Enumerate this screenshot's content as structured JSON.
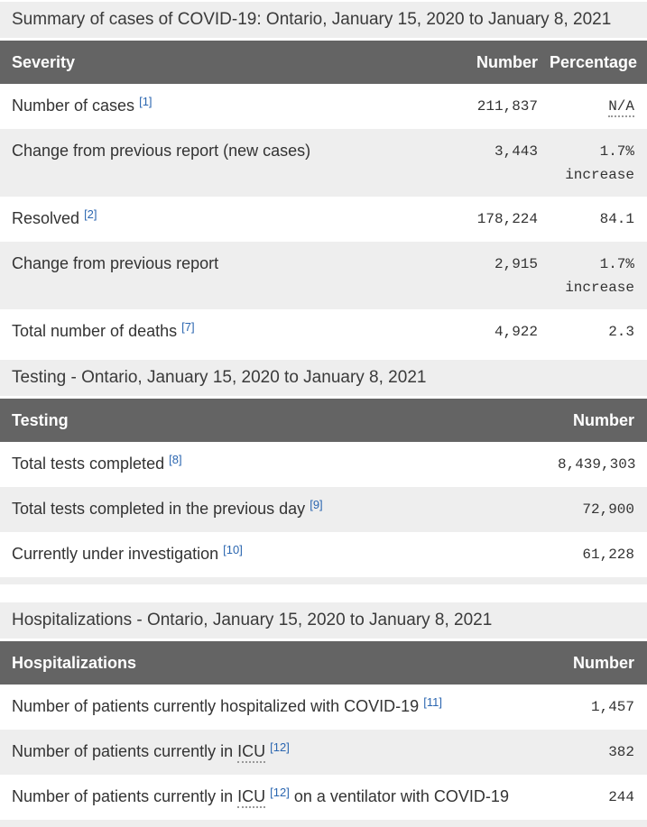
{
  "colors": {
    "caption_bg": "#eeeeee",
    "header_bg": "#646464",
    "header_text": "#ffffff",
    "zebra_bg": "#eeeeee",
    "body_text": "#333333",
    "footnote_link": "#2b66b0"
  },
  "summary": {
    "caption": "Summary of cases of COVID-19: Ontario, January 15, 2020 to January 8, 2021",
    "columns": {
      "severity": "Severity",
      "number": "Number",
      "percentage": "Percentage"
    },
    "rows": {
      "0": {
        "label": "Number of cases",
        "sup": "[1]",
        "number": "211,837",
        "percentage": "N/A"
      },
      "1": {
        "label": "Change from previous report (new cases)",
        "number": "3,443",
        "percentage": "1.7% increase"
      },
      "2": {
        "label": "Resolved",
        "sup": "[2]",
        "number": "178,224",
        "percentage": "84.1"
      },
      "3": {
        "label": "Change from previous report",
        "number": "2,915",
        "percentage": "1.7% increase"
      },
      "4": {
        "label": "Total number of deaths",
        "sup": "[7]",
        "number": "4,922",
        "percentage": "2.3"
      }
    }
  },
  "testing": {
    "caption": "Testing - Ontario, January 15, 2020 to January 8, 2021",
    "columns": {
      "label": "Testing",
      "number": "Number"
    },
    "rows": {
      "0": {
        "label": "Total tests completed",
        "sup": "[8]",
        "number": "8,439,303"
      },
      "1": {
        "label": "Total tests completed in the previous day",
        "sup": "[9]",
        "number": "72,900"
      },
      "2": {
        "label": "Currently under investigation",
        "sup": "[10]",
        "number": "61,228"
      }
    }
  },
  "hospitalizations": {
    "caption": "Hospitalizations - Ontario, January 15, 2020 to January 8, 2021",
    "columns": {
      "label": "Hospitalizations",
      "number": "Number"
    },
    "rows": {
      "0": {
        "pre": "Number of patients currently hospitalized with COVID-19",
        "sup": "[11]",
        "number": "1,457"
      },
      "1": {
        "pre": "Number of patients currently in",
        "abbr": "ICU",
        "sup": "[12]",
        "number": "382"
      },
      "2": {
        "pre": "Number of patients currently in",
        "abbr": "ICU",
        "sup": "[12]",
        "post": "on a ventilator with COVID-19",
        "number": "244"
      }
    }
  }
}
